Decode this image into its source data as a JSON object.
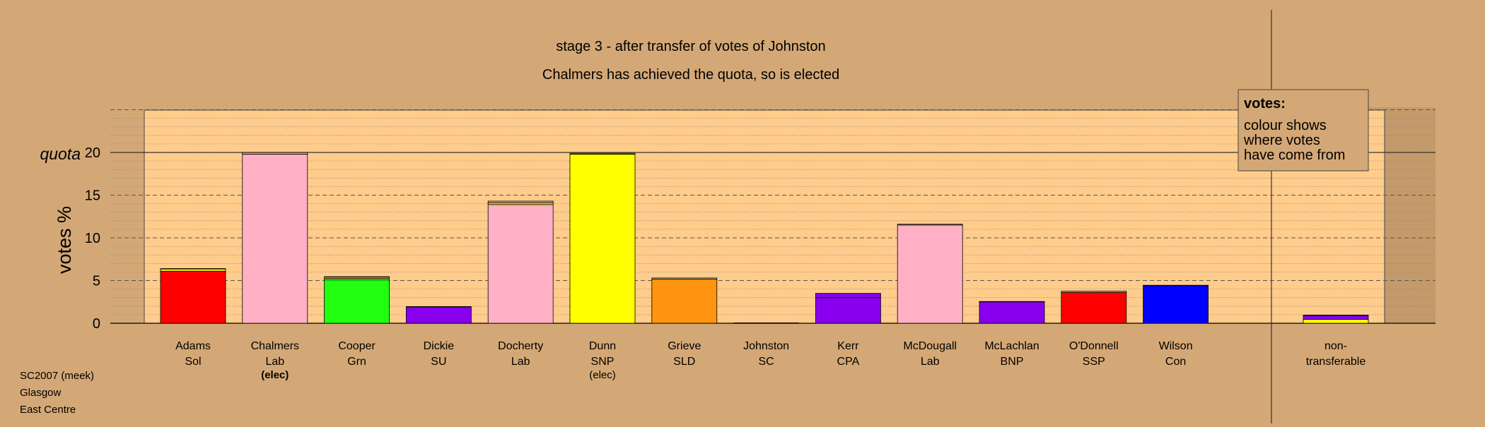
{
  "title": "stage 3 - after transfer of votes of Johnston",
  "subtitle": "Chalmers has achieved the quota, so is elected",
  "footer": [
    "SC2007 (meek)",
    "Glasgow",
    "East Centre"
  ],
  "legend": {
    "heading": "votes:",
    "lines": [
      "colour shows",
      "where votes",
      "have come from"
    ]
  },
  "colors": {
    "background": "#d4a876",
    "plot_area": "#ffcc8c",
    "Sol": "#ff0000",
    "Lab": "#ffb0c4",
    "Grn": "#22ff11",
    "SU": "#8800ee",
    "SNP": "#ffff00",
    "SLD": "#ff9410",
    "SC": "#d4a876",
    "CPA": "#8800ee",
    "BNP": "#8800ee",
    "SSP": "#ff0000",
    "Con": "#0000ff"
  },
  "chart_data": {
    "type": "bar",
    "stacked": true,
    "ylabel": "votes %",
    "quota_label": "quota",
    "quota": 20,
    "ylim": [
      0,
      25
    ],
    "yticks": [
      0,
      5,
      10,
      15,
      20
    ],
    "grid": "dotted minor lines every 1, dashed major lines every 5",
    "categories": [
      {
        "name": "Adams",
        "party": "Sol",
        "status": "",
        "segments": [
          {
            "from": "Sol",
            "value": 6.1
          },
          {
            "from": "SNP",
            "value": 0.25
          },
          {
            "from": "SC",
            "value": 0.05
          }
        ]
      },
      {
        "name": "Chalmers",
        "party": "Lab",
        "status": "(elec)",
        "segments": [
          {
            "from": "Lab",
            "value": 19.8
          },
          {
            "from": "SC",
            "value": 0.2
          }
        ]
      },
      {
        "name": "Cooper",
        "party": "Grn",
        "status": "",
        "segments": [
          {
            "from": "Grn",
            "value": 5.1
          },
          {
            "from": "SNP",
            "value": 0.15
          },
          {
            "from": "Lab",
            "value": 0.15
          },
          {
            "from": "SC",
            "value": 0.05
          }
        ]
      },
      {
        "name": "Dickie",
        "party": "SU",
        "status": "",
        "segments": [
          {
            "from": "SU",
            "value": 1.9
          },
          {
            "from": "SC",
            "value": 0.05
          }
        ]
      },
      {
        "name": "Docherty",
        "party": "Lab",
        "status": "",
        "segments": [
          {
            "from": "Lab",
            "value": 13.9
          },
          {
            "from": "SNP",
            "value": 0.2
          },
          {
            "from": "SC",
            "value": 0.2
          }
        ]
      },
      {
        "name": "Dunn",
        "party": "SNP",
        "status": "(elec)",
        "segments": [
          {
            "from": "SNP",
            "value": 19.8
          },
          {
            "from": "SC",
            "value": 0.1
          }
        ]
      },
      {
        "name": "Grieve",
        "party": "SLD",
        "status": "",
        "segments": [
          {
            "from": "SLD",
            "value": 5.15
          },
          {
            "from": "SC",
            "value": 0.15
          }
        ]
      },
      {
        "name": "Johnston",
        "party": "SC",
        "status": "",
        "segments": [
          {
            "from": "SC",
            "value": 0.05
          }
        ]
      },
      {
        "name": "Kerr",
        "party": "CPA",
        "status": "",
        "segments": [
          {
            "from": "CPA",
            "value": 3.0
          },
          {
            "from": "SU",
            "value": 0.5
          }
        ]
      },
      {
        "name": "McDougall",
        "party": "Lab",
        "status": "",
        "segments": [
          {
            "from": "Lab",
            "value": 11.5
          },
          {
            "from": "SC",
            "value": 0.1
          }
        ]
      },
      {
        "name": "McLachlan",
        "party": "BNP",
        "status": "",
        "segments": [
          {
            "from": "BNP",
            "value": 2.5
          },
          {
            "from": "SC",
            "value": 0.05
          }
        ]
      },
      {
        "name": "O'Donnell",
        "party": "SSP",
        "status": "",
        "segments": [
          {
            "from": "SSP",
            "value": 3.6
          },
          {
            "from": "SC",
            "value": 0.15
          }
        ]
      },
      {
        "name": "Wilson",
        "party": "Con",
        "status": "",
        "segments": [
          {
            "from": "Con",
            "value": 4.4
          },
          {
            "from": "SC",
            "value": 0.05
          }
        ]
      }
    ],
    "nontransferable": {
      "label": [
        "non-",
        "transferable"
      ],
      "segments": [
        {
          "from": "SNP",
          "value": 0.45
        },
        {
          "from": "SU",
          "value": 0.45
        },
        {
          "from": "SC",
          "value": 0.05
        }
      ]
    }
  }
}
